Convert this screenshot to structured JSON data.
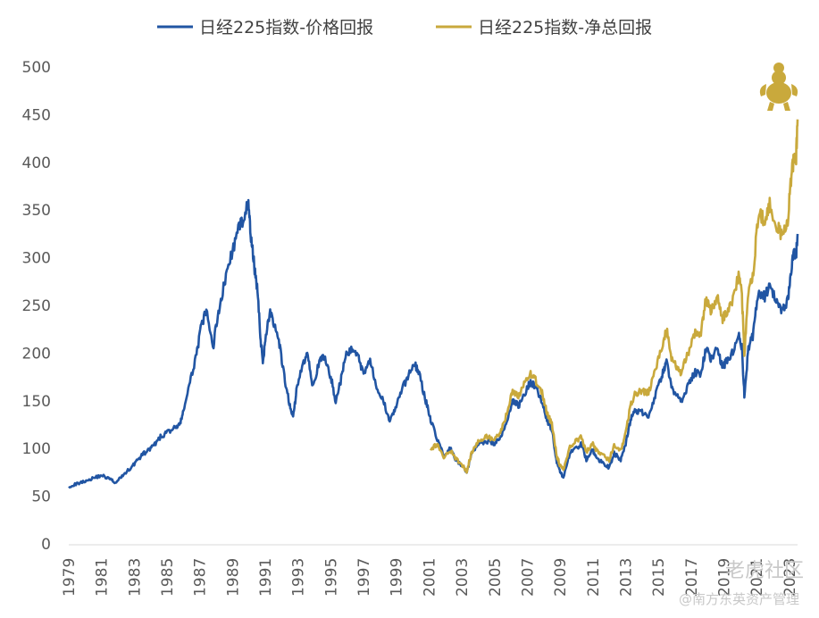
{
  "chart_data": {
    "type": "line",
    "title": "",
    "xlabel": "",
    "ylabel": "",
    "x_range": [
      1979,
      2023.5
    ],
    "ylim": [
      0,
      500
    ],
    "y_ticks": [
      0,
      50,
      100,
      150,
      200,
      250,
      300,
      350,
      400,
      450,
      500
    ],
    "x_tick_labels": [
      "1979",
      "1981",
      "1983",
      "1985",
      "1987",
      "1989",
      "1991",
      "1993",
      "1995",
      "1997",
      "1999",
      "2001",
      "2003",
      "2005",
      "2007",
      "2009",
      "2011",
      "2013",
      "2015",
      "2017",
      "2019",
      "2021",
      "2023"
    ],
    "grid": false,
    "legend_position": "top",
    "series": [
      {
        "name": "日经225指数-价格回报",
        "color": "#2155a3",
        "points": [
          [
            1979.0,
            60
          ],
          [
            1979.5,
            63
          ],
          [
            1980.0,
            66
          ],
          [
            1980.5,
            69
          ],
          [
            1981.0,
            72
          ],
          [
            1981.5,
            68
          ],
          [
            1981.9,
            64
          ],
          [
            1982.3,
            72
          ],
          [
            1982.8,
            80
          ],
          [
            1983.2,
            88
          ],
          [
            1983.6,
            95
          ],
          [
            1984.0,
            100
          ],
          [
            1984.3,
            105
          ],
          [
            1984.6,
            112
          ],
          [
            1985.0,
            117
          ],
          [
            1985.5,
            122
          ],
          [
            1985.8,
            125
          ],
          [
            1986.0,
            140
          ],
          [
            1986.4,
            168
          ],
          [
            1986.8,
            200
          ],
          [
            1987.1,
            228
          ],
          [
            1987.4,
            245
          ],
          [
            1987.8,
            205
          ],
          [
            1988.1,
            240
          ],
          [
            1988.4,
            265
          ],
          [
            1988.8,
            295
          ],
          [
            1989.2,
            320
          ],
          [
            1989.6,
            340
          ],
          [
            1989.95,
            358
          ],
          [
            1990.1,
            325
          ],
          [
            1990.3,
            295
          ],
          [
            1990.5,
            270
          ],
          [
            1990.7,
            218
          ],
          [
            1990.85,
            190
          ],
          [
            1991.0,
            215
          ],
          [
            1991.3,
            245
          ],
          [
            1991.6,
            225
          ],
          [
            1991.9,
            205
          ],
          [
            1992.2,
            170
          ],
          [
            1992.5,
            145
          ],
          [
            1992.7,
            133
          ],
          [
            1992.9,
            160
          ],
          [
            1993.3,
            190
          ],
          [
            1993.6,
            200
          ],
          [
            1993.9,
            165
          ],
          [
            1994.3,
            190
          ],
          [
            1994.6,
            197
          ],
          [
            1995.0,
            175
          ],
          [
            1995.3,
            150
          ],
          [
            1995.6,
            170
          ],
          [
            1995.9,
            197
          ],
          [
            1996.3,
            205
          ],
          [
            1996.7,
            195
          ],
          [
            1997.0,
            178
          ],
          [
            1997.4,
            195
          ],
          [
            1997.8,
            160
          ],
          [
            1998.2,
            150
          ],
          [
            1998.6,
            130
          ],
          [
            1998.9,
            140
          ],
          [
            1999.3,
            160
          ],
          [
            1999.7,
            175
          ],
          [
            2000.1,
            190
          ],
          [
            2000.4,
            178
          ],
          [
            2000.8,
            150
          ],
          [
            2001.1,
            130
          ],
          [
            2001.5,
            110
          ],
          [
            2001.9,
            92
          ],
          [
            2002.3,
            100
          ],
          [
            2002.6,
            88
          ],
          [
            2003.0,
            82
          ],
          [
            2003.3,
            75
          ],
          [
            2003.6,
            95
          ],
          [
            2004.0,
            105
          ],
          [
            2004.5,
            108
          ],
          [
            2005.0,
            105
          ],
          [
            2005.4,
            112
          ],
          [
            2005.8,
            132
          ],
          [
            2006.1,
            150
          ],
          [
            2006.5,
            145
          ],
          [
            2006.9,
            160
          ],
          [
            2007.2,
            170
          ],
          [
            2007.5,
            165
          ],
          [
            2007.9,
            150
          ],
          [
            2008.2,
            130
          ],
          [
            2008.5,
            120
          ],
          [
            2008.8,
            85
          ],
          [
            2009.0,
            75
          ],
          [
            2009.2,
            70
          ],
          [
            2009.6,
            95
          ],
          [
            2010.0,
            100
          ],
          [
            2010.3,
            105
          ],
          [
            2010.6,
            88
          ],
          [
            2011.0,
            98
          ],
          [
            2011.2,
            90
          ],
          [
            2011.6,
            85
          ],
          [
            2012.0,
            80
          ],
          [
            2012.3,
            95
          ],
          [
            2012.7,
            88
          ],
          [
            2013.0,
            105
          ],
          [
            2013.3,
            130
          ],
          [
            2013.6,
            140
          ],
          [
            2014.0,
            138
          ],
          [
            2014.4,
            135
          ],
          [
            2014.8,
            155
          ],
          [
            2015.2,
            175
          ],
          [
            2015.5,
            190
          ],
          [
            2015.8,
            165
          ],
          [
            2016.1,
            155
          ],
          [
            2016.4,
            150
          ],
          [
            2016.8,
            165
          ],
          [
            2017.2,
            180
          ],
          [
            2017.6,
            178
          ],
          [
            2017.9,
            205
          ],
          [
            2018.2,
            195
          ],
          [
            2018.6,
            205
          ],
          [
            2018.9,
            185
          ],
          [
            2019.1,
            190
          ],
          [
            2019.5,
            200
          ],
          [
            2019.9,
            220
          ],
          [
            2020.1,
            205
          ],
          [
            2020.25,
            155
          ],
          [
            2020.5,
            205
          ],
          [
            2020.8,
            220
          ],
          [
            2021.1,
            265
          ],
          [
            2021.5,
            260
          ],
          [
            2021.8,
            270
          ],
          [
            2022.2,
            255
          ],
          [
            2022.5,
            245
          ],
          [
            2022.9,
            255
          ],
          [
            2023.1,
            285
          ],
          [
            2023.3,
            310
          ],
          [
            2023.4,
            300
          ],
          [
            2023.5,
            325
          ]
        ]
      },
      {
        "name": "日经225指数-净总回报",
        "color": "#c9a93c",
        "points": [
          [
            2001.1,
            98
          ],
          [
            2001.5,
            105
          ],
          [
            2001.9,
            90
          ],
          [
            2002.3,
            98
          ],
          [
            2002.6,
            90
          ],
          [
            2003.0,
            83
          ],
          [
            2003.3,
            76
          ],
          [
            2003.6,
            96
          ],
          [
            2004.0,
            108
          ],
          [
            2004.5,
            112
          ],
          [
            2005.0,
            110
          ],
          [
            2005.4,
            118
          ],
          [
            2005.8,
            140
          ],
          [
            2006.1,
            160
          ],
          [
            2006.5,
            155
          ],
          [
            2006.9,
            172
          ],
          [
            2007.2,
            178
          ],
          [
            2007.5,
            172
          ],
          [
            2007.9,
            158
          ],
          [
            2008.2,
            138
          ],
          [
            2008.5,
            125
          ],
          [
            2008.8,
            92
          ],
          [
            2009.0,
            82
          ],
          [
            2009.2,
            78
          ],
          [
            2009.6,
            102
          ],
          [
            2010.0,
            108
          ],
          [
            2010.3,
            112
          ],
          [
            2010.6,
            96
          ],
          [
            2011.0,
            106
          ],
          [
            2011.2,
            98
          ],
          [
            2011.6,
            93
          ],
          [
            2012.0,
            88
          ],
          [
            2012.3,
            104
          ],
          [
            2012.7,
            97
          ],
          [
            2013.0,
            117
          ],
          [
            2013.3,
            145
          ],
          [
            2013.6,
            158
          ],
          [
            2014.0,
            160
          ],
          [
            2014.4,
            158
          ],
          [
            2014.8,
            180
          ],
          [
            2015.2,
            205
          ],
          [
            2015.5,
            225
          ],
          [
            2015.8,
            195
          ],
          [
            2016.1,
            185
          ],
          [
            2016.4,
            180
          ],
          [
            2016.8,
            200
          ],
          [
            2017.2,
            220
          ],
          [
            2017.6,
            222
          ],
          [
            2017.9,
            255
          ],
          [
            2018.2,
            245
          ],
          [
            2018.6,
            258
          ],
          [
            2018.9,
            235
          ],
          [
            2019.1,
            242
          ],
          [
            2019.5,
            255
          ],
          [
            2019.9,
            280
          ],
          [
            2020.1,
            262
          ],
          [
            2020.25,
            200
          ],
          [
            2020.5,
            265
          ],
          [
            2020.8,
            285
          ],
          [
            2021.1,
            345
          ],
          [
            2021.5,
            340
          ],
          [
            2021.8,
            355
          ],
          [
            2022.2,
            335
          ],
          [
            2022.5,
            325
          ],
          [
            2022.9,
            340
          ],
          [
            2023.1,
            380
          ],
          [
            2023.3,
            410
          ],
          [
            2023.4,
            400
          ],
          [
            2023.5,
            445
          ]
        ]
      }
    ]
  },
  "watermark": {
    "brand": "老虎社区",
    "source": "@南方东英资产管理"
  },
  "mascot_icon": "sumo-wrestler-icon"
}
